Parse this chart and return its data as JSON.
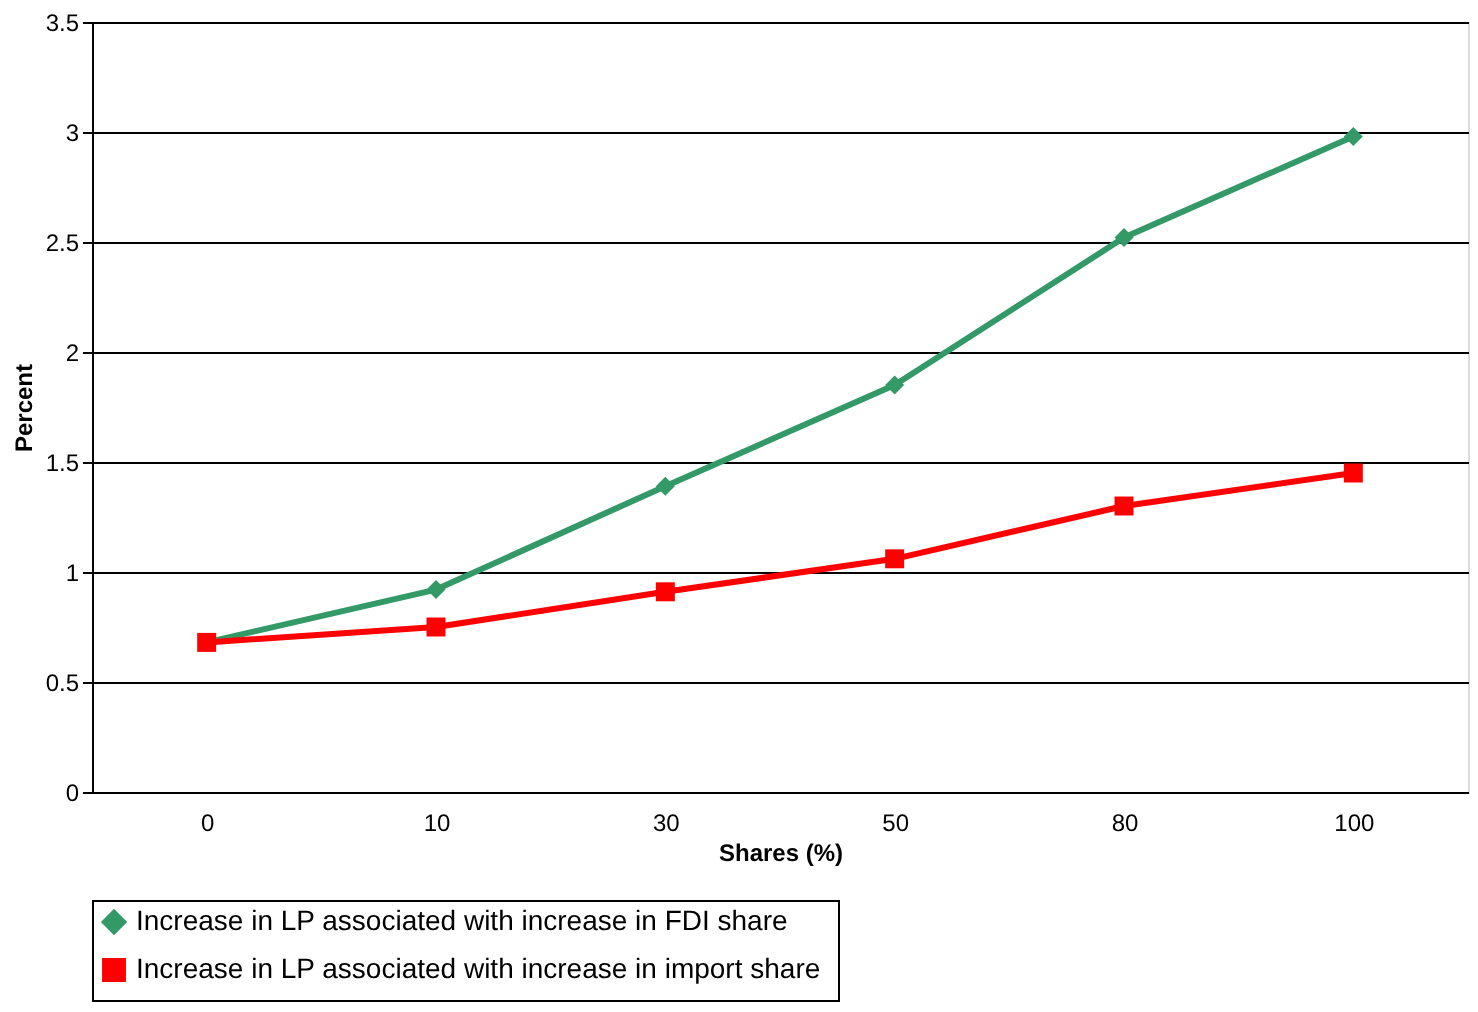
{
  "chart_data": {
    "type": "line",
    "xlabel": "Shares (%)",
    "ylabel": "Percent",
    "categories": [
      "0",
      "10",
      "30",
      "50",
      "80",
      "100"
    ],
    "series": [
      {
        "name": "Increase in LP associated with  increase in FDI share",
        "color": "#339966",
        "marker": "diamond",
        "values": [
          0.68,
          0.92,
          1.39,
          1.85,
          2.52,
          2.98
        ]
      },
      {
        "name": "Increase in LP associated  with increase in import share",
        "color": "#ff0000",
        "marker": "square",
        "values": [
          0.68,
          0.75,
          0.91,
          1.06,
          1.3,
          1.45
        ]
      }
    ],
    "ylim": [
      0,
      3.5
    ],
    "yticks": [
      0,
      0.5,
      1,
      1.5,
      2,
      2.5,
      3,
      3.5
    ],
    "grid": "y",
    "legend": "bottom",
    "line_style": "solid"
  }
}
